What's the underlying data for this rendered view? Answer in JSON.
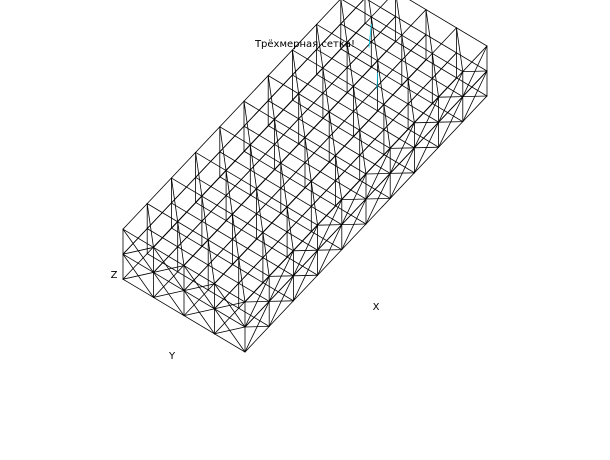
{
  "figure": {
    "title": "Трёхмерная сетка!",
    "axis_labels": {
      "x": "X",
      "y": "Y",
      "z": "Z"
    },
    "line_color": "#000000",
    "highlight_color": "#00c8e8",
    "background": "#ffffff"
  },
  "grid": {
    "x_cells": 10,
    "y_cells": 4,
    "z_cells": 2,
    "subdivision": 2
  }
}
